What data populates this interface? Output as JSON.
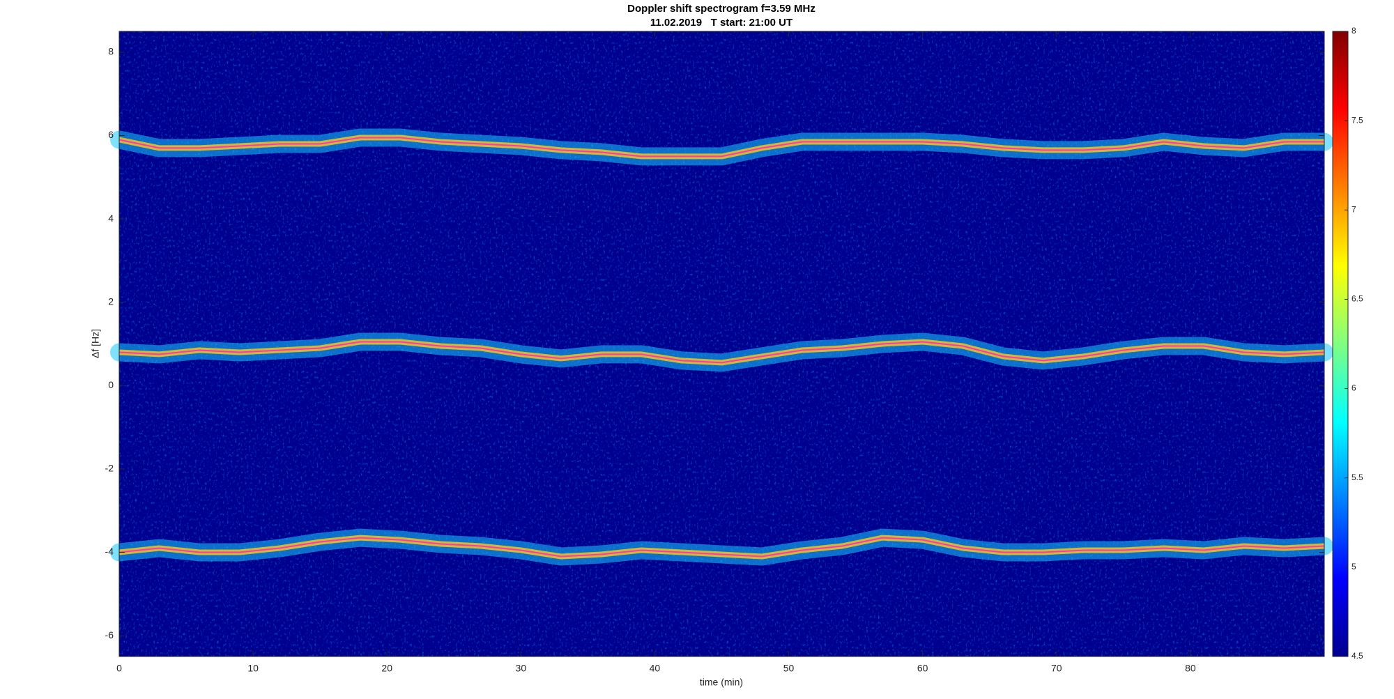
{
  "chart_data": {
    "type": "spectrogram",
    "title": "Doppler shift spectrogram f=3.59 MHz",
    "subtitle": "11.02.2019   T start: 21:00 UT",
    "xlabel": "time (min)",
    "ylabel": "Δf [Hz]",
    "xlim": [
      0,
      90
    ],
    "xticks": [
      0,
      10,
      20,
      30,
      40,
      50,
      60,
      70,
      80
    ],
    "ylim": [
      -6.5,
      8.5
    ],
    "yticks": [
      -6,
      -4,
      -2,
      0,
      2,
      4,
      6,
      8
    ],
    "clim": [
      4.5,
      8
    ],
    "cticks": [
      4.5,
      5,
      5.5,
      6,
      6.5,
      7,
      7.5,
      8
    ],
    "colormap": [
      "#00008f",
      "#0000ff",
      "#0080ff",
      "#00ffff",
      "#80ff80",
      "#ffff00",
      "#ff8000",
      "#ff0000",
      "#800000"
    ],
    "x": [
      0,
      3,
      6,
      9,
      12,
      15,
      18,
      21,
      24,
      27,
      30,
      33,
      36,
      39,
      42,
      45,
      48,
      51,
      54,
      57,
      60,
      63,
      66,
      69,
      72,
      75,
      78,
      81,
      84,
      87,
      90
    ],
    "series": [
      {
        "color": "#ff33cc",
        "values": [
          5.9,
          5.7,
          5.7,
          5.75,
          5.8,
          5.8,
          5.95,
          5.95,
          5.85,
          5.8,
          5.75,
          5.65,
          5.6,
          5.5,
          5.5,
          5.5,
          5.7,
          5.85,
          5.85,
          5.85,
          5.85,
          5.8,
          5.7,
          5.65,
          5.65,
          5.7,
          5.85,
          5.75,
          5.7,
          5.85,
          5.85
        ]
      },
      {
        "color": "#ff33cc",
        "values": [
          0.8,
          0.75,
          0.85,
          0.8,
          0.85,
          0.9,
          1.05,
          1.05,
          0.95,
          0.9,
          0.75,
          0.65,
          0.75,
          0.75,
          0.6,
          0.55,
          0.7,
          0.85,
          0.9,
          1.0,
          1.05,
          0.95,
          0.7,
          0.6,
          0.7,
          0.85,
          0.95,
          0.95,
          0.8,
          0.75,
          0.8
        ]
      },
      {
        "color": "#ff33cc",
        "values": [
          -4.0,
          -3.9,
          -4.0,
          -4.0,
          -3.9,
          -3.75,
          -3.65,
          -3.7,
          -3.8,
          -3.85,
          -3.95,
          -4.1,
          -4.05,
          -3.95,
          -4.0,
          -4.05,
          -4.1,
          -3.95,
          -3.85,
          -3.65,
          -3.7,
          -3.9,
          -4.0,
          -4.0,
          -3.95,
          -3.95,
          -3.9,
          -3.95,
          -3.85,
          -3.9,
          -3.85
        ]
      }
    ]
  }
}
